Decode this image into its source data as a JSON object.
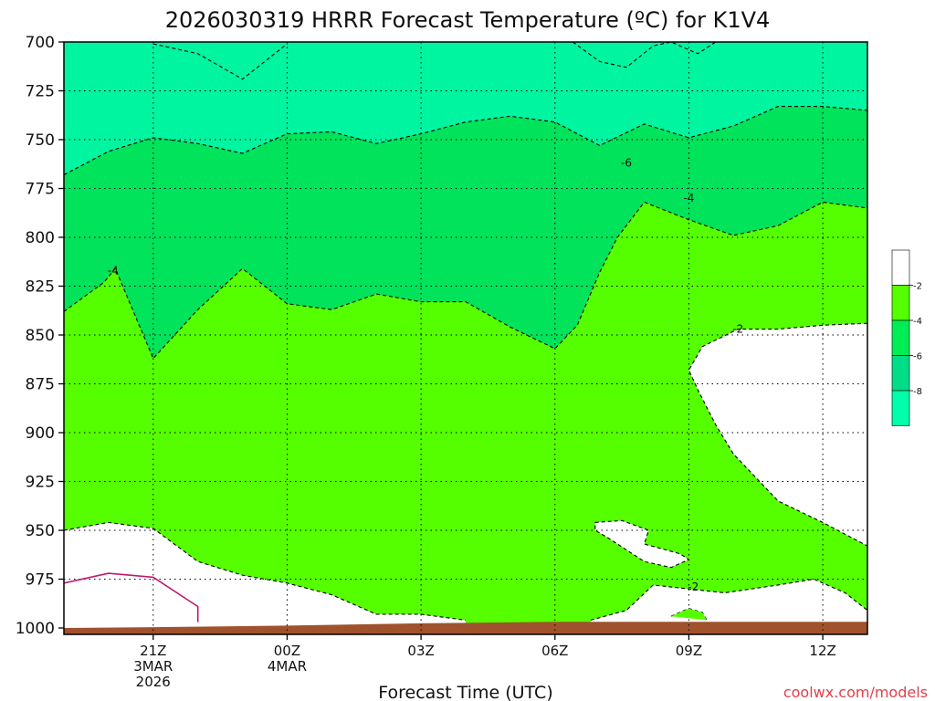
{
  "chart_data": {
    "type": "contour",
    "title": "2026030319 HRRR Forecast Temperature (ºC) for K1V4",
    "xlabel": "Forecast Time (UTC)",
    "credit": "coolwx.com/models",
    "x_axis": {
      "unit": "hours since 2026-03-03 19Z",
      "range": [
        0,
        18
      ],
      "ticks": [
        {
          "hour": 2,
          "lines": [
            "21Z",
            "3MAR",
            "2026"
          ]
        },
        {
          "hour": 5,
          "lines": [
            "00Z",
            "4MAR"
          ]
        },
        {
          "hour": 8,
          "lines": [
            "03Z"
          ]
        },
        {
          "hour": 11,
          "lines": [
            "06Z"
          ]
        },
        {
          "hour": 14,
          "lines": [
            "09Z"
          ]
        },
        {
          "hour": 17,
          "lines": [
            "12Z"
          ]
        }
      ]
    },
    "y_axis": {
      "unit": "hPa",
      "range": [
        700,
        1000
      ],
      "inverted": true,
      "ticks": [
        "700",
        "725",
        "750",
        "775",
        "800",
        "825",
        "850",
        "875",
        "900",
        "925",
        "950",
        "975",
        "1000"
      ]
    },
    "grid": true,
    "legend": {
      "position": "right",
      "labels": [
        "-2",
        "-4",
        "-6",
        "-8"
      ],
      "colors": [
        "#ffffff",
        "#55ff00",
        "#00ee55",
        "#00dd88",
        "#00ffaa"
      ]
    },
    "fills": [
      {
        "band": "-6 to -8",
        "color": "#00f5a0",
        "region": "above_c-6"
      },
      {
        "band": "-4 to -6",
        "color": "#00e35a",
        "region": "between_c-4_c-6"
      },
      {
        "band": "-2 to -4",
        "color": "#55ff00",
        "region": "between_c-2_c-4"
      },
      {
        "band": "above -2",
        "color": "#ffffff",
        "region": "c-2_areas"
      }
    ],
    "ground": {
      "color": "#a0522d",
      "points": [
        [
          0,
          1000
        ],
        [
          2,
          999.6
        ],
        [
          5,
          998.8
        ],
        [
          8,
          997.6
        ],
        [
          11,
          996.8
        ],
        [
          14,
          996.8
        ],
        [
          17,
          996.8
        ],
        [
          18,
          996.8
        ]
      ]
    },
    "contours": {
      "c-6": {
        "level": -6,
        "label": "-6",
        "label_at": [
          12.6,
          762
        ],
        "points": [
          [
            0,
            768
          ],
          [
            1,
            756
          ],
          [
            2,
            749
          ],
          [
            3,
            752
          ],
          [
            4,
            757
          ],
          [
            5,
            747
          ],
          [
            6,
            746
          ],
          [
            7,
            752
          ],
          [
            8,
            747
          ],
          [
            9,
            741
          ],
          [
            10,
            738
          ],
          [
            11,
            741
          ],
          [
            12,
            753
          ],
          [
            13,
            742
          ],
          [
            14,
            749
          ],
          [
            15,
            743
          ],
          [
            16,
            733
          ],
          [
            17,
            733
          ],
          [
            18,
            735
          ]
        ]
      },
      "c-4": {
        "level": -4,
        "label": "-4",
        "label_at": [
          1.1,
          817
        ],
        "label2": "-4",
        "label2_at": [
          14.0,
          780
        ],
        "points": [
          [
            0,
            838
          ],
          [
            0.9,
            823
          ],
          [
            1.15,
            816
          ],
          [
            2,
            862
          ],
          [
            3,
            837
          ],
          [
            4,
            816
          ],
          [
            5,
            834
          ],
          [
            6,
            837
          ],
          [
            7,
            829
          ],
          [
            8,
            833
          ],
          [
            9,
            833
          ],
          [
            10,
            846
          ],
          [
            11,
            857
          ],
          [
            11.5,
            845
          ],
          [
            12,
            818
          ],
          [
            12.4,
            800
          ],
          [
            13,
            782
          ],
          [
            14,
            791
          ],
          [
            15,
            799
          ],
          [
            16,
            794
          ],
          [
            17,
            782
          ],
          [
            18,
            785
          ]
        ]
      },
      "c-6b": {
        "level": -6,
        "points": [
          [
            2,
            701
          ],
          [
            3,
            706
          ],
          [
            4,
            719
          ],
          [
            5,
            701
          ]
        ]
      },
      "c-6c": {
        "level": -6,
        "points": [
          [
            11.4,
            700
          ],
          [
            12,
            710
          ],
          [
            12.6,
            713
          ],
          [
            13.2,
            702
          ],
          [
            13.6,
            700
          ],
          [
            14.2,
            706
          ],
          [
            14.6,
            700
          ]
        ]
      },
      "c-2_low": {
        "level": -2,
        "points": [
          [
            0,
            950
          ],
          [
            1,
            946
          ],
          [
            2,
            949
          ],
          [
            3,
            966
          ],
          [
            4,
            973
          ],
          [
            5,
            977
          ],
          [
            6,
            983
          ],
          [
            7,
            993
          ],
          [
            8,
            993
          ],
          [
            9,
            996
          ]
        ]
      },
      "c-2_right": {
        "level": -2,
        "label": "-2",
        "label_at": [
          15.1,
          847
        ],
        "points": [
          [
            18,
            844
          ],
          [
            17,
            845
          ],
          [
            16,
            847
          ],
          [
            15.1,
            847
          ],
          [
            14.3,
            856
          ],
          [
            14.0,
            868
          ],
          [
            14.2,
            878
          ],
          [
            14.6,
            896
          ],
          [
            15,
            911
          ],
          [
            16,
            935
          ],
          [
            17,
            946
          ],
          [
            18,
            958
          ]
        ]
      },
      "c-2_island": {
        "level": -2,
        "points": [
          [
            11.9,
            946
          ],
          [
            12.5,
            945
          ],
          [
            13.1,
            950
          ],
          [
            13.0,
            957
          ],
          [
            13.8,
            962
          ],
          [
            14.0,
            965
          ],
          [
            13.6,
            969
          ],
          [
            13.0,
            966
          ],
          [
            12.6,
            960
          ],
          [
            12.2,
            954
          ],
          [
            11.9,
            950
          ]
        ]
      },
      "c-2_bottom": {
        "level": -2,
        "label": "-2",
        "label_at": [
          14.1,
          979
        ],
        "points": [
          [
            11.8,
            996
          ],
          [
            12.6,
            991
          ],
          [
            13.2,
            978
          ],
          [
            14,
            980
          ],
          [
            14.8,
            982
          ],
          [
            16,
            978
          ],
          [
            16.8,
            975
          ],
          [
            17.5,
            982
          ],
          [
            18,
            991
          ]
        ]
      },
      "c-2_bump": {
        "level": -2,
        "points": [
          [
            13.6,
            994
          ],
          [
            14.0,
            990
          ],
          [
            14.3,
            992
          ],
          [
            14.4,
            996
          ]
        ]
      },
      "c0": {
        "level": 0,
        "color": "#c0186c",
        "points": [
          [
            0,
            977
          ],
          [
            1,
            972
          ],
          [
            2,
            974
          ],
          [
            3,
            989
          ],
          [
            3,
            997
          ]
        ]
      }
    }
  }
}
